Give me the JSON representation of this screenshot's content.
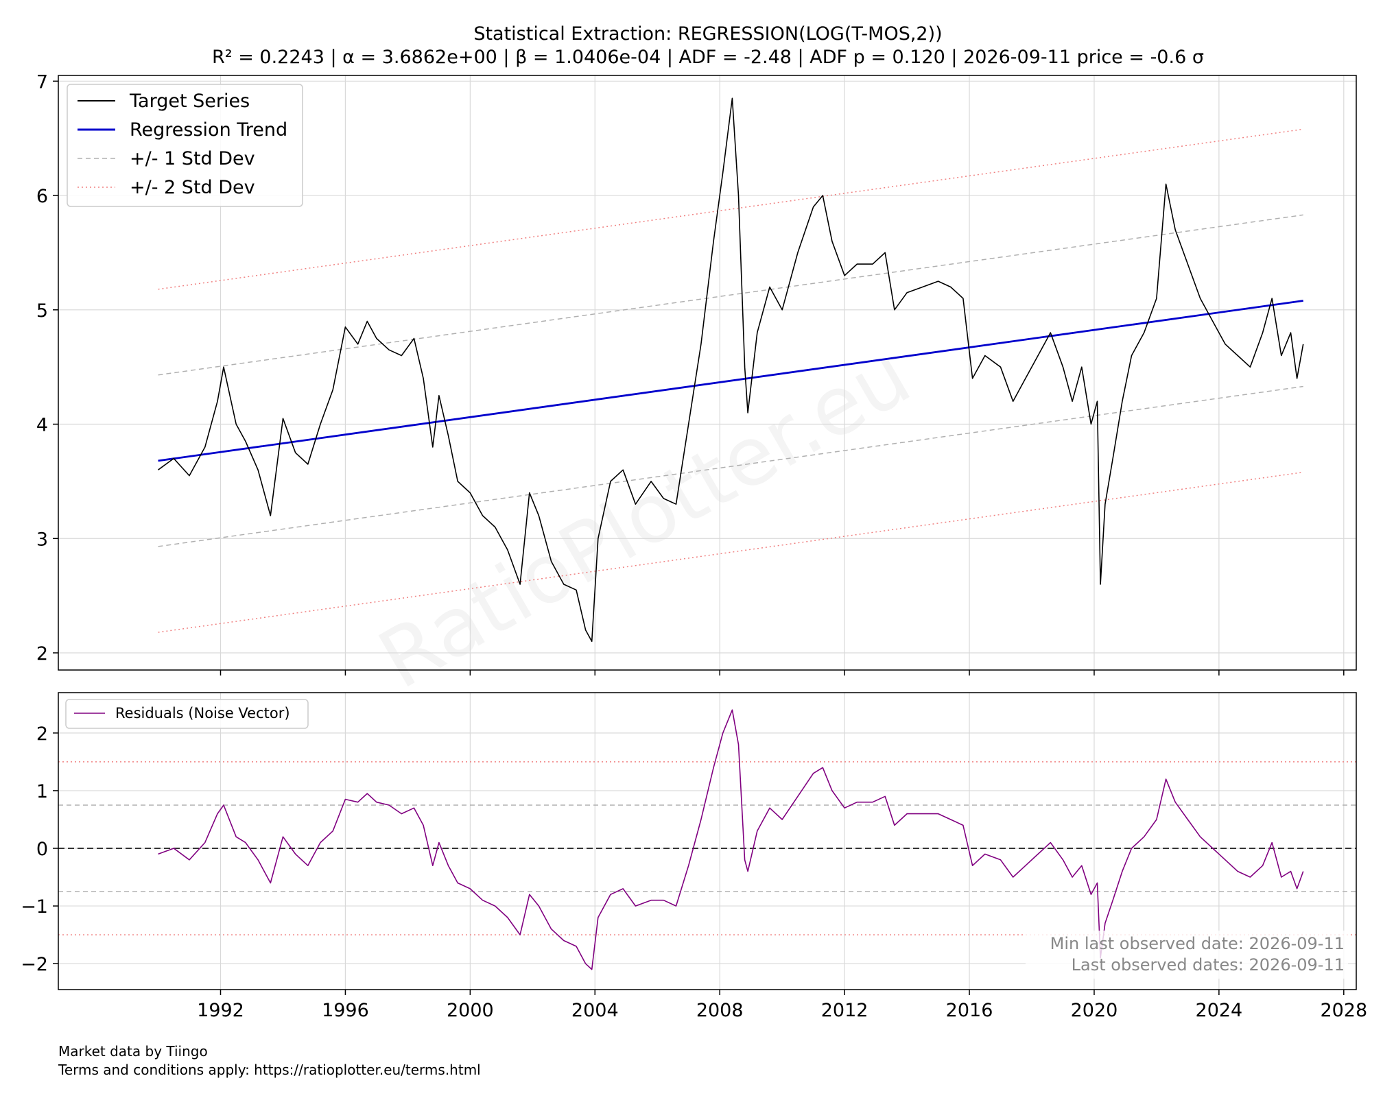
{
  "title": {
    "line1": "Statistical Extraction: REGRESSION(LOG(T-MOS,2))",
    "line2": "R² = 0.2243 | α = 3.6862e+00 | β = 1.0406e-04 | ADF = -2.48 | ADF p = 0.120 | 2026-09-11 price = -0.6 σ"
  },
  "watermark": "RatioPlotter.eu",
  "footer": {
    "line1": "Market data by Tiingo",
    "line2": "Terms and conditions apply: https://ratioplotter.eu/terms.html"
  },
  "colors": {
    "target": "#000000",
    "trend": "#0000cc",
    "std1": "#b0b0b0",
    "std2": "#f08080",
    "residual": "#800080",
    "zero": "#333333",
    "grid": "#d9d9d9"
  },
  "chart_data": [
    {
      "type": "line",
      "panel": "main",
      "xlim": [
        1986.8,
        2028.4
      ],
      "ylim": [
        1.85,
        7.05
      ],
      "x_ticks": [
        "1992",
        "1996",
        "2000",
        "2004",
        "2008",
        "2012",
        "2016",
        "2020",
        "2024",
        "2028"
      ],
      "y_ticks": [
        "2",
        "3",
        "4",
        "5",
        "6",
        "7"
      ],
      "grid": true,
      "legend_position": "upper-left",
      "legend": [
        "Target Series",
        "Regression Trend",
        "+/- 1 Std Dev",
        "+/- 2 Std Dev"
      ],
      "series": [
        {
          "name": "Target Series",
          "x": [
            1990.0,
            1990.5,
            1991.0,
            1991.5,
            1991.9,
            1992.1,
            1992.5,
            1992.8,
            1993.2,
            1993.6,
            1994.0,
            1994.4,
            1994.8,
            1995.2,
            1995.6,
            1996.0,
            1996.4,
            1996.7,
            1997.0,
            1997.4,
            1997.8,
            1998.2,
            1998.5,
            1998.8,
            1999.0,
            1999.3,
            1999.6,
            2000.0,
            2000.4,
            2000.8,
            2001.2,
            2001.6,
            2001.9,
            2002.2,
            2002.6,
            2003.0,
            2003.4,
            2003.7,
            2003.9,
            2004.1,
            2004.5,
            2004.9,
            2005.3,
            2005.8,
            2006.2,
            2006.6,
            2007.0,
            2007.4,
            2007.8,
            2008.1,
            2008.4,
            2008.6,
            2008.8,
            2008.9,
            2009.2,
            2009.6,
            2010.0,
            2010.5,
            2011.0,
            2011.3,
            2011.6,
            2012.0,
            2012.4,
            2012.9,
            2013.3,
            2013.6,
            2014.0,
            2014.5,
            2015.0,
            2015.4,
            2015.8,
            2016.1,
            2016.5,
            2017.0,
            2017.4,
            2017.8,
            2018.2,
            2018.6,
            2019.0,
            2019.3,
            2019.6,
            2019.9,
            2020.1,
            2020.2,
            2020.35,
            2020.6,
            2020.9,
            2021.2,
            2021.6,
            2022.0,
            2022.3,
            2022.6,
            2023.0,
            2023.4,
            2023.8,
            2024.2,
            2024.6,
            2025.0,
            2025.4,
            2025.7,
            2026.0,
            2026.3,
            2026.5,
            2026.7
          ],
          "y": [
            3.6,
            3.7,
            3.55,
            3.8,
            4.2,
            4.5,
            4.0,
            3.85,
            3.6,
            3.2,
            4.05,
            3.75,
            3.65,
            4.0,
            4.3,
            4.85,
            4.7,
            4.9,
            4.75,
            4.65,
            4.6,
            4.75,
            4.4,
            3.8,
            4.25,
            3.9,
            3.5,
            3.4,
            3.2,
            3.1,
            2.9,
            2.6,
            3.4,
            3.2,
            2.8,
            2.6,
            2.55,
            2.2,
            2.1,
            3.0,
            3.5,
            3.6,
            3.3,
            3.5,
            3.35,
            3.3,
            4.0,
            4.7,
            5.6,
            6.2,
            6.85,
            6.0,
            4.5,
            4.1,
            4.8,
            5.2,
            5.0,
            5.5,
            5.9,
            6.0,
            5.6,
            5.3,
            5.4,
            5.4,
            5.5,
            5.0,
            5.15,
            5.2,
            5.25,
            5.2,
            5.1,
            4.4,
            4.6,
            4.5,
            4.2,
            4.4,
            4.6,
            4.8,
            4.5,
            4.2,
            4.5,
            4.0,
            4.2,
            2.6,
            3.3,
            3.7,
            4.2,
            4.6,
            4.8,
            5.1,
            6.1,
            5.7,
            5.4,
            5.1,
            4.9,
            4.7,
            4.6,
            4.5,
            4.8,
            5.1,
            4.6,
            4.8,
            4.4,
            4.7
          ]
        },
        {
          "name": "Regression Trend",
          "x": [
            1990.0,
            2026.7
          ],
          "y": [
            3.68,
            5.08
          ]
        },
        {
          "name": "+/- 1 Std Dev",
          "x": [
            1990.0,
            2026.7
          ],
          "y": [
            4.43,
            5.83
          ]
        },
        {
          "name": "+/- 1 Std Dev",
          "x": [
            1990.0,
            2026.7
          ],
          "y": [
            2.93,
            4.33
          ]
        },
        {
          "name": "+/- 2 Std Dev",
          "x": [
            1990.0,
            2026.7
          ],
          "y": [
            5.18,
            6.58
          ]
        },
        {
          "name": "+/- 2 Std Dev",
          "x": [
            1990.0,
            2026.7
          ],
          "y": [
            2.18,
            3.58
          ]
        }
      ]
    },
    {
      "type": "line",
      "panel": "residuals",
      "xlim": [
        1986.8,
        2028.4
      ],
      "ylim": [
        -2.45,
        2.7
      ],
      "x_ticks": [
        "1992",
        "1996",
        "2000",
        "2004",
        "2008",
        "2012",
        "2016",
        "2020",
        "2024",
        "2028"
      ],
      "y_ticks": [
        "−2",
        "−1",
        "0",
        "1",
        "2"
      ],
      "grid": true,
      "legend_position": "upper-left",
      "legend": [
        "Residuals (Noise Vector)"
      ],
      "hlines": {
        "zero": 0,
        "std1": [
          0.75,
          -0.75
        ],
        "std2": [
          1.5,
          -1.5
        ]
      },
      "annotations": [
        "Min last observed date: 2026-09-11",
        "Last observed dates: 2026-09-11"
      ],
      "series": [
        {
          "name": "Residuals (Noise Vector)",
          "x": [
            1990.0,
            1990.5,
            1991.0,
            1991.5,
            1991.9,
            1992.1,
            1992.5,
            1992.8,
            1993.2,
            1993.6,
            1994.0,
            1994.4,
            1994.8,
            1995.2,
            1995.6,
            1996.0,
            1996.4,
            1996.7,
            1997.0,
            1997.4,
            1997.8,
            1998.2,
            1998.5,
            1998.8,
            1999.0,
            1999.3,
            1999.6,
            2000.0,
            2000.4,
            2000.8,
            2001.2,
            2001.6,
            2001.9,
            2002.2,
            2002.6,
            2003.0,
            2003.4,
            2003.7,
            2003.9,
            2004.1,
            2004.5,
            2004.9,
            2005.3,
            2005.8,
            2006.2,
            2006.6,
            2007.0,
            2007.4,
            2007.8,
            2008.1,
            2008.4,
            2008.6,
            2008.8,
            2008.9,
            2009.2,
            2009.6,
            2010.0,
            2010.5,
            2011.0,
            2011.3,
            2011.6,
            2012.0,
            2012.4,
            2012.9,
            2013.3,
            2013.6,
            2014.0,
            2014.5,
            2015.0,
            2015.4,
            2015.8,
            2016.1,
            2016.5,
            2017.0,
            2017.4,
            2017.8,
            2018.2,
            2018.6,
            2019.0,
            2019.3,
            2019.6,
            2019.9,
            2020.1,
            2020.2,
            2020.35,
            2020.6,
            2020.9,
            2021.2,
            2021.6,
            2022.0,
            2022.3,
            2022.6,
            2023.0,
            2023.4,
            2023.8,
            2024.2,
            2024.6,
            2025.0,
            2025.4,
            2025.7,
            2026.0,
            2026.3,
            2026.5,
            2026.7
          ],
          "y": [
            -0.1,
            0.0,
            -0.2,
            0.1,
            0.6,
            0.75,
            0.2,
            0.1,
            -0.2,
            -0.6,
            0.2,
            -0.1,
            -0.3,
            0.1,
            0.3,
            0.85,
            0.8,
            0.95,
            0.8,
            0.75,
            0.6,
            0.7,
            0.4,
            -0.3,
            0.1,
            -0.3,
            -0.6,
            -0.7,
            -0.9,
            -1.0,
            -1.2,
            -1.5,
            -0.8,
            -1.0,
            -1.4,
            -1.6,
            -1.7,
            -2.0,
            -2.1,
            -1.2,
            -0.8,
            -0.7,
            -1.0,
            -0.9,
            -0.9,
            -1.0,
            -0.3,
            0.5,
            1.4,
            2.0,
            2.4,
            1.8,
            -0.2,
            -0.4,
            0.3,
            0.7,
            0.5,
            0.9,
            1.3,
            1.4,
            1.0,
            0.7,
            0.8,
            0.8,
            0.9,
            0.4,
            0.6,
            0.6,
            0.6,
            0.5,
            0.4,
            -0.3,
            -0.1,
            -0.2,
            -0.5,
            -0.3,
            -0.1,
            0.1,
            -0.2,
            -0.5,
            -0.3,
            -0.8,
            -0.6,
            -1.9,
            -1.3,
            -0.9,
            -0.4,
            0.0,
            0.2,
            0.5,
            1.2,
            0.8,
            0.5,
            0.2,
            0.0,
            -0.2,
            -0.4,
            -0.5,
            -0.3,
            0.1,
            -0.5,
            -0.4,
            -0.7,
            -0.4
          ]
        }
      ]
    }
  ]
}
